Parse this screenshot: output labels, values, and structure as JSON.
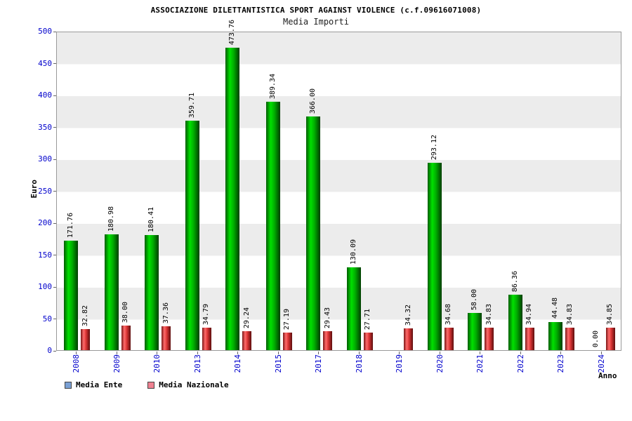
{
  "title": "ASSOCIAZIONE DILETTANTISTICA SPORT AGAINST VIOLENCE (c.f.09616071008)",
  "subtitle": "Media Importi",
  "legend": [
    {
      "label": "Media Ente",
      "color": "#7aa0d4"
    },
    {
      "label": "Media Nazionale",
      "color": "#ef8191"
    }
  ],
  "chart_data": {
    "type": "bar",
    "title": "Media Importi",
    "categories": [
      "2008",
      "2009",
      "2010",
      "2013",
      "2014",
      "2015",
      "2017",
      "2018",
      "2019",
      "2020",
      "2021",
      "2022",
      "2023",
      "2024"
    ],
    "series": [
      {
        "name": "Media Ente",
        "color_main": "#00b000",
        "values": [
          171.76,
          180.98,
          180.41,
          359.71,
          473.76,
          389.34,
          366.0,
          130.09,
          null,
          293.12,
          58.0,
          86.36,
          44.48,
          0.0
        ]
      },
      {
        "name": "Media Nazionale",
        "color_main": "#d93434",
        "values": [
          32.82,
          38.0,
          37.36,
          34.79,
          29.24,
          27.19,
          29.43,
          27.71,
          34.32,
          34.68,
          34.83,
          34.94,
          34.83,
          34.85
        ]
      }
    ],
    "xlabel": "Anno",
    "ylabel": "Euro",
    "ylim": [
      0,
      500
    ],
    "ytick_step": 50,
    "legend_position": "bottom",
    "grid": "banded"
  }
}
